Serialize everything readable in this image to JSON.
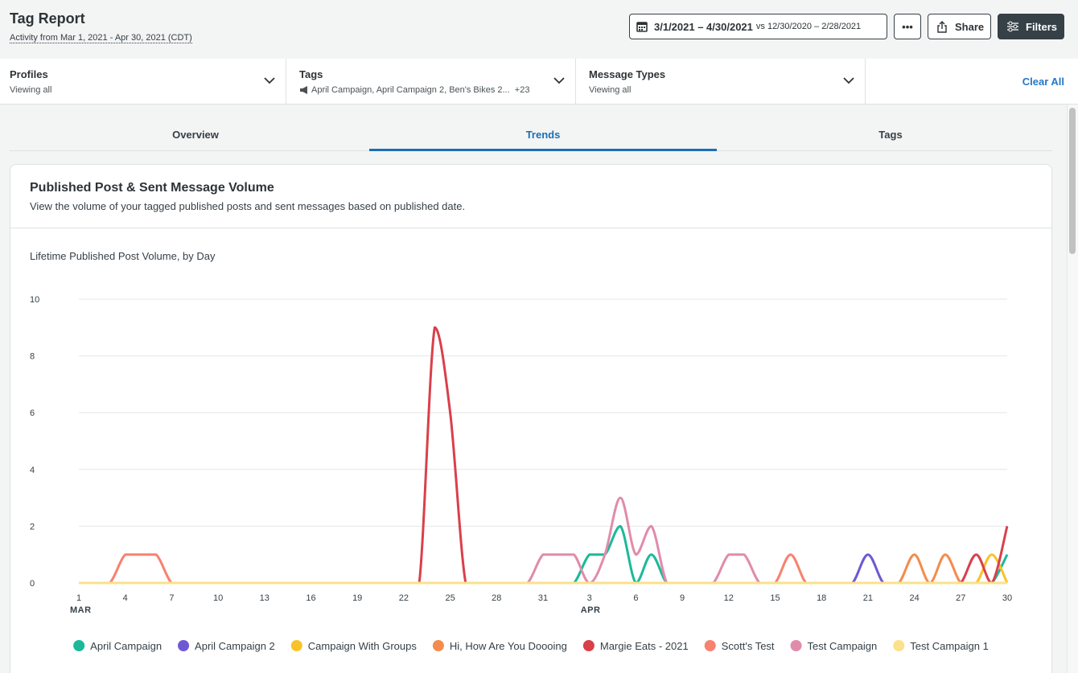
{
  "header": {
    "title": "Tag Report",
    "subtitle": "Activity from Mar 1, 2021 - Apr 30, 2021 (CDT)"
  },
  "toolbar": {
    "date_range": "3/1/2021 – 4/30/2021",
    "comparison": "vs 12/30/2020 – 2/28/2021",
    "more": "•••",
    "share": "Share",
    "filters": "Filters"
  },
  "filter_bar": {
    "items": [
      {
        "label": "Profiles",
        "value": "Viewing all"
      },
      {
        "label": "Tags",
        "value": "April Campaign, April Campaign 2, Ben's Bikes 2...  +23"
      },
      {
        "label": "Message Types",
        "value": "Viewing all"
      }
    ],
    "clear_all": "Clear All"
  },
  "tabs": {
    "items": [
      "Overview",
      "Trends",
      "Tags"
    ],
    "active_index": 1
  },
  "card": {
    "title": "Published Post & Sent Message Volume",
    "description": "View the volume of your tagged published posts and sent messages based on published date."
  },
  "chart_data": {
    "type": "line",
    "title": "Lifetime Published Post Volume, by Day",
    "categories": [
      "1",
      null,
      null,
      "4",
      null,
      null,
      "7",
      null,
      null,
      "10",
      null,
      null,
      "13",
      null,
      null,
      "16",
      null,
      null,
      "19",
      null,
      null,
      "22",
      null,
      null,
      "25",
      null,
      null,
      "28",
      null,
      null,
      "31",
      null,
      null,
      "3",
      null,
      null,
      "6",
      null,
      null,
      "9",
      null,
      null,
      "12",
      null,
      null,
      "15",
      null,
      null,
      "18",
      null,
      null,
      "21",
      null,
      null,
      "24",
      null,
      null,
      "27",
      null,
      null,
      "30"
    ],
    "month_ticks": [
      {
        "value": 0,
        "label": "MAR"
      },
      {
        "value": 33,
        "label": "APR"
      }
    ],
    "ylim": [
      0,
      10
    ],
    "yticks": [
      0,
      2,
      4,
      6,
      8,
      10
    ],
    "grid": true,
    "series": [
      {
        "name": "April Campaign",
        "color": "#1bb99a",
        "values": [
          0,
          0,
          0,
          0,
          0,
          0,
          0,
          0,
          0,
          0,
          0,
          0,
          0,
          0,
          0,
          0,
          0,
          0,
          0,
          0,
          0,
          0,
          0,
          0,
          0,
          0,
          0,
          0,
          0,
          0,
          0,
          0,
          0,
          1,
          1,
          2,
          0,
          1,
          0,
          0,
          0,
          0,
          0,
          0,
          0,
          0,
          0,
          0,
          0,
          0,
          0,
          0,
          0,
          0,
          0,
          0,
          0,
          0,
          0,
          0,
          1
        ]
      },
      {
        "name": "April Campaign 2",
        "color": "#6f58d6",
        "values": [
          0,
          0,
          0,
          0,
          0,
          0,
          0,
          0,
          0,
          0,
          0,
          0,
          0,
          0,
          0,
          0,
          0,
          0,
          0,
          0,
          0,
          0,
          0,
          0,
          0,
          0,
          0,
          0,
          0,
          0,
          0,
          0,
          0,
          0,
          0,
          0,
          0,
          0,
          0,
          0,
          0,
          0,
          0,
          0,
          0,
          0,
          0,
          0,
          0,
          0,
          0,
          1,
          0,
          0,
          0,
          0,
          0,
          0,
          0,
          0,
          0
        ]
      },
      {
        "name": "Campaign With Groups",
        "color": "#f8c22b",
        "values": [
          0,
          0,
          0,
          0,
          0,
          0,
          0,
          0,
          0,
          0,
          0,
          0,
          0,
          0,
          0,
          0,
          0,
          0,
          0,
          0,
          0,
          0,
          0,
          0,
          0,
          0,
          0,
          0,
          0,
          0,
          0,
          0,
          0,
          0,
          0,
          0,
          0,
          0,
          0,
          0,
          0,
          0,
          0,
          0,
          0,
          0,
          0,
          0,
          0,
          0,
          0,
          0,
          0,
          0,
          0,
          0,
          0,
          0,
          0,
          1,
          0
        ]
      },
      {
        "name": "Hi, How Are You Doooing",
        "color": "#f58b4c",
        "values": [
          0,
          0,
          0,
          0,
          0,
          0,
          0,
          0,
          0,
          0,
          0,
          0,
          0,
          0,
          0,
          0,
          0,
          0,
          0,
          0,
          0,
          0,
          0,
          0,
          0,
          0,
          0,
          0,
          0,
          0,
          0,
          0,
          0,
          0,
          0,
          0,
          0,
          0,
          0,
          0,
          0,
          0,
          0,
          0,
          0,
          0,
          0,
          0,
          0,
          0,
          0,
          0,
          0,
          0,
          1,
          0,
          1,
          0,
          0,
          0,
          0
        ]
      },
      {
        "name": "Margie Eats - 2021",
        "color": "#d9404a",
        "values": [
          0,
          0,
          0,
          0,
          0,
          0,
          0,
          0,
          0,
          0,
          0,
          0,
          0,
          0,
          0,
          0,
          0,
          0,
          0,
          0,
          0,
          0,
          0,
          9,
          6,
          0,
          0,
          0,
          0,
          0,
          0,
          0,
          0,
          0,
          0,
          0,
          0,
          0,
          0,
          0,
          0,
          0,
          0,
          0,
          0,
          0,
          0,
          0,
          0,
          0,
          0,
          0,
          0,
          0,
          0,
          0,
          0,
          0,
          1,
          0,
          2
        ]
      },
      {
        "name": "Scott's Test",
        "color": "#f7826f",
        "values": [
          0,
          0,
          0,
          1,
          1,
          1,
          0,
          0,
          0,
          0,
          0,
          0,
          0,
          0,
          0,
          0,
          0,
          0,
          0,
          0,
          0,
          0,
          0,
          0,
          0,
          0,
          0,
          0,
          0,
          0,
          0,
          0,
          0,
          0,
          0,
          0,
          0,
          0,
          0,
          0,
          0,
          0,
          0,
          0,
          0,
          0,
          1,
          0,
          0,
          0,
          0,
          0,
          0,
          0,
          0,
          0,
          0,
          0,
          0,
          0,
          0
        ]
      },
      {
        "name": "Test Campaign",
        "color": "#e18bab",
        "values": [
          0,
          0,
          0,
          0,
          0,
          0,
          0,
          0,
          0,
          0,
          0,
          0,
          0,
          0,
          0,
          0,
          0,
          0,
          0,
          0,
          0,
          0,
          0,
          0,
          0,
          0,
          0,
          0,
          0,
          0,
          1,
          1,
          1,
          0,
          1,
          3,
          1,
          2,
          0,
          0,
          0,
          0,
          1,
          1,
          0,
          0,
          0,
          0,
          0,
          0,
          0,
          0,
          0,
          0,
          0,
          0,
          0,
          0,
          0,
          0,
          0
        ]
      },
      {
        "name": "Test Campaign 1",
        "color": "#fbe18b",
        "values": [
          0,
          0,
          0,
          0,
          0,
          0,
          0,
          0,
          0,
          0,
          0,
          0,
          0,
          0,
          0,
          0,
          0,
          0,
          0,
          0,
          0,
          0,
          0,
          0,
          0,
          0,
          0,
          0,
          0,
          0,
          0,
          0,
          0,
          0,
          0,
          0,
          0,
          0,
          0,
          0,
          0,
          0,
          0,
          0,
          0,
          0,
          0,
          0,
          0,
          0,
          0,
          0,
          0,
          0,
          0,
          0,
          0,
          0,
          0,
          0,
          0
        ]
      }
    ]
  }
}
